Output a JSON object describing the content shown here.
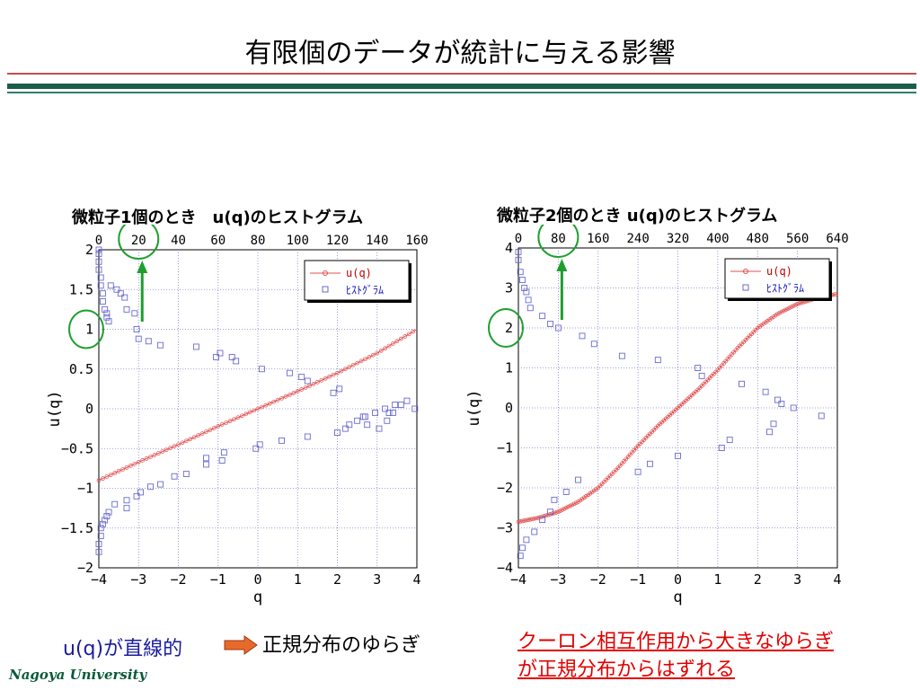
{
  "slide": {
    "title": "有限個のデータが統計に与える影響",
    "bottom_left": "u(q)が直線的",
    "bottom_mid": "正規分布のゆらぎ",
    "bottom_right_line1": "クーロン相互作用から大きなゆらぎ",
    "bottom_right_line2": "が正規分布からはずれる",
    "footer": "Nagoya University",
    "colors": {
      "rule_red": "#c0504d",
      "rule_green": "#1a5e4a",
      "arrow": "#1e9e2e",
      "circle": "#1e9e2e",
      "curve": "#e05050",
      "histogram": "#6a6ad0"
    }
  },
  "chart_data": [
    {
      "type": "scatter",
      "title": "微粒子1個のとき　u(q)のヒストグラム",
      "xlabel": "q",
      "ylabel": "u(q)",
      "xlim": [
        -4,
        4
      ],
      "ylim": [
        -2,
        2
      ],
      "xticks": [
        "-4",
        "-3",
        "-2",
        "-1",
        "0",
        "1",
        "2",
        "3",
        "4"
      ],
      "yticks": [
        "-2",
        "-1.5",
        "-1",
        "-0.5",
        "0",
        "0.5",
        "1",
        "1.5",
        "2"
      ],
      "top_xlim": [
        0,
        160
      ],
      "top_xticks": [
        "0",
        "20",
        "40",
        "60",
        "80",
        "100",
        "120",
        "140",
        "160"
      ],
      "grid": true,
      "legend": [
        "u(q)",
        "ﾋｽﾄｸﾞﾗﾑ"
      ],
      "legend_position": "top-right",
      "highlight_top_tick": "20",
      "highlight_y_tick": "1",
      "series": [
        {
          "name": "u(q)",
          "kind": "line",
          "x": [
            -4,
            -3,
            -2,
            -1,
            0,
            1,
            2,
            3,
            4
          ],
          "y": [
            -0.9,
            -0.67,
            -0.45,
            -0.22,
            0.0,
            0.22,
            0.45,
            0.7,
            1.0
          ]
        },
        {
          "name": "ﾋｽﾄｸﾞﾗﾑ",
          "kind": "scatter",
          "x": [
            -4.0,
            -4.0,
            -4.0,
            -4.0,
            -3.95,
            -3.95,
            -3.9,
            -3.9,
            -3.85,
            -3.8,
            -3.8,
            -3.75,
            -3.7,
            -3.55,
            -3.45,
            -3.35,
            -3.3,
            -3.1,
            -3.05,
            -3.0,
            -2.75,
            -2.45,
            -1.55,
            -1.05,
            -0.95,
            -0.65,
            -0.55,
            0.1,
            0.8,
            1.1,
            1.25,
            1.9,
            2.05,
            2.65,
            2.75,
            3.05,
            3.25,
            3.4,
            3.6,
            3.75,
            3.95,
            -4.0,
            -4.0,
            -3.95,
            -3.95,
            -3.9,
            -3.85,
            -3.8,
            -3.75,
            -3.6,
            -3.3,
            -3.3,
            -3.05,
            -2.95,
            -2.7,
            -2.45,
            -2.1,
            -1.8,
            -1.3,
            -1.3,
            -0.9,
            -0.85,
            -0.05,
            0.05,
            0.6,
            1.25,
            2.0,
            2.2,
            2.3,
            2.5,
            2.7,
            2.95,
            3.2,
            3.3,
            3.45
          ],
          "y": [
            2.0,
            1.95,
            1.85,
            1.75,
            1.65,
            1.55,
            1.45,
            1.35,
            1.25,
            1.2,
            1.15,
            1.1,
            1.55,
            1.5,
            1.45,
            1.4,
            1.25,
            1.2,
            1.0,
            0.88,
            0.85,
            0.8,
            0.78,
            0.65,
            0.7,
            0.65,
            0.6,
            0.5,
            0.45,
            0.4,
            0.35,
            0.2,
            0.25,
            -0.1,
            -0.2,
            -0.25,
            -0.15,
            -0.05,
            0.05,
            0.1,
            0.0,
            -1.8,
            -1.7,
            -1.6,
            -1.5,
            -1.45,
            -1.4,
            -1.35,
            -1.3,
            -1.2,
            -1.25,
            -1.15,
            -1.1,
            -1.05,
            -0.98,
            -0.95,
            -0.85,
            -0.82,
            -0.7,
            -0.62,
            -0.65,
            -0.55,
            -0.5,
            -0.45,
            -0.4,
            -0.35,
            -0.3,
            -0.25,
            -0.2,
            -0.15,
            -0.1,
            -0.05,
            0.0,
            -0.05,
            0.05
          ]
        }
      ]
    },
    {
      "type": "scatter",
      "title": "微粒子2個のとき u(q)のヒストグラム",
      "xlabel": "q",
      "ylabel": "u(q)",
      "xlim": [
        -4,
        4
      ],
      "ylim": [
        -4,
        4
      ],
      "xticks": [
        "-4",
        "-3",
        "-2",
        "-1",
        "0",
        "1",
        "2",
        "3",
        "4"
      ],
      "yticks": [
        "-4",
        "-3",
        "-2",
        "-1",
        "0",
        "1",
        "2",
        "3",
        "4"
      ],
      "top_xlim": [
        0,
        640
      ],
      "top_xticks": [
        "0",
        "80",
        "160",
        "240",
        "320",
        "400",
        "480",
        "560",
        "640"
      ],
      "grid": true,
      "legend": [
        "u(q)",
        "ﾋｽﾄｸﾞﾗﾑ"
      ],
      "legend_position": "top-right",
      "highlight_top_tick": "80",
      "highlight_y_tick": "2",
      "series": [
        {
          "name": "u(q)",
          "kind": "line",
          "x": [
            -4,
            -3.5,
            -3,
            -2.5,
            -2,
            -1.5,
            -1,
            -0.5,
            0,
            0.5,
            1,
            1.5,
            2,
            2.5,
            3,
            3.5,
            4
          ],
          "y": [
            -2.85,
            -2.75,
            -2.6,
            -2.35,
            -2.0,
            -1.5,
            -0.95,
            -0.45,
            0.0,
            0.45,
            0.95,
            1.5,
            2.0,
            2.35,
            2.6,
            2.75,
            2.85
          ]
        },
        {
          "name": "ﾋｽﾄｸﾞﾗﾑ",
          "kind": "scatter",
          "x": [
            -4.0,
            -4.0,
            -3.95,
            -3.9,
            -3.85,
            -3.8,
            -3.75,
            -3.7,
            -3.4,
            -3.2,
            -3.0,
            -2.4,
            -2.1,
            -1.4,
            -0.5,
            0.5,
            0.6,
            1.6,
            2.2,
            2.5,
            2.6,
            2.9,
            3.6,
            -3.95,
            -3.9,
            -3.8,
            -3.6,
            -3.4,
            -3.2,
            -3.1,
            -2.8,
            -2.5,
            -1.0,
            -0.7,
            0.0,
            1.1,
            1.3,
            2.3,
            2.4
          ],
          "y": [
            3.9,
            3.7,
            3.4,
            3.2,
            3.0,
            2.9,
            2.7,
            2.5,
            2.3,
            2.1,
            2.0,
            1.8,
            1.6,
            1.3,
            1.2,
            1.0,
            0.8,
            0.6,
            0.4,
            0.2,
            0.1,
            0.0,
            -0.2,
            -3.7,
            -3.5,
            -3.3,
            -3.1,
            -2.8,
            -2.6,
            -2.3,
            -2.1,
            -1.8,
            -1.6,
            -1.4,
            -1.2,
            -1.0,
            -0.8,
            -0.6,
            -0.4
          ]
        }
      ]
    }
  ]
}
